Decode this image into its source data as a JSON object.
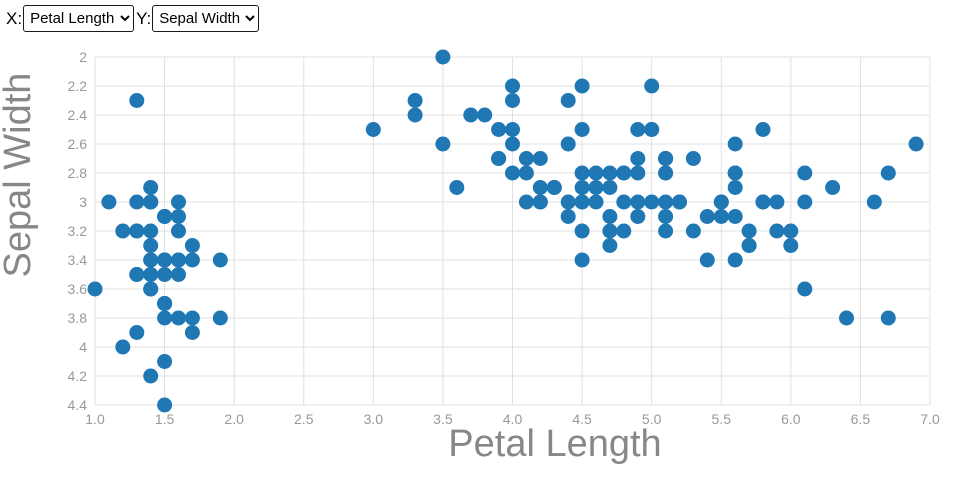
{
  "controls": {
    "x_label": "X:",
    "x_select_value": "Petal Length",
    "y_label": "Y:",
    "y_select_value": "Sepal Width"
  },
  "chart_data": {
    "type": "scatter",
    "title": "",
    "xlabel": "Petal Length",
    "ylabel": "Sepal Width",
    "xlim": [
      1.0,
      7.0
    ],
    "ylim": [
      2.0,
      4.4
    ],
    "y_axis_reversed": true,
    "grid": true,
    "legend": "none",
    "x_ticks": [
      "1.0",
      "1.5",
      "2.0",
      "2.5",
      "3.0",
      "3.5",
      "4.0",
      "4.5",
      "5.0",
      "5.5",
      "6.0",
      "6.5",
      "7.0"
    ],
    "y_ticks": [
      "2",
      "2.2",
      "2.4",
      "2.6",
      "2.8",
      "3",
      "3.2",
      "3.4",
      "3.6",
      "3.8",
      "4",
      "4.2",
      "4.4"
    ],
    "marker_color": "#1f77b4",
    "marker_radius": 7.5,
    "grid_color": "#e0e0e0",
    "tick_label_color": "#999999",
    "axis_title_color": "#878787",
    "points": [
      [
        1.4,
        3.5
      ],
      [
        1.4,
        3.0
      ],
      [
        1.3,
        3.2
      ],
      [
        1.5,
        3.1
      ],
      [
        1.4,
        3.6
      ],
      [
        1.7,
        3.9
      ],
      [
        1.4,
        3.4
      ],
      [
        1.5,
        3.4
      ],
      [
        1.4,
        2.9
      ],
      [
        1.5,
        3.1
      ],
      [
        1.5,
        3.7
      ],
      [
        1.6,
        3.4
      ],
      [
        1.4,
        3.0
      ],
      [
        1.1,
        3.0
      ],
      [
        1.2,
        4.0
      ],
      [
        1.5,
        4.4
      ],
      [
        1.3,
        3.9
      ],
      [
        1.4,
        3.5
      ],
      [
        1.7,
        3.8
      ],
      [
        1.5,
        3.8
      ],
      [
        1.7,
        3.4
      ],
      [
        1.5,
        3.7
      ],
      [
        1.0,
        3.6
      ],
      [
        1.7,
        3.3
      ],
      [
        1.9,
        3.4
      ],
      [
        1.6,
        3.0
      ],
      [
        1.6,
        3.4
      ],
      [
        1.5,
        3.5
      ],
      [
        1.4,
        3.4
      ],
      [
        1.6,
        3.2
      ],
      [
        1.6,
        3.1
      ],
      [
        1.5,
        3.4
      ],
      [
        1.5,
        4.1
      ],
      [
        1.4,
        4.2
      ],
      [
        1.5,
        3.1
      ],
      [
        1.2,
        3.2
      ],
      [
        1.3,
        3.5
      ],
      [
        1.4,
        3.6
      ],
      [
        1.3,
        3.0
      ],
      [
        1.5,
        3.4
      ],
      [
        1.3,
        3.5
      ],
      [
        1.3,
        2.3
      ],
      [
        1.3,
        3.2
      ],
      [
        1.6,
        3.5
      ],
      [
        1.9,
        3.8
      ],
      [
        1.4,
        3.0
      ],
      [
        1.6,
        3.8
      ],
      [
        1.4,
        3.2
      ],
      [
        1.5,
        3.7
      ],
      [
        1.4,
        3.3
      ],
      [
        4.7,
        3.2
      ],
      [
        4.5,
        3.2
      ],
      [
        4.9,
        3.1
      ],
      [
        4.0,
        2.3
      ],
      [
        4.6,
        2.8
      ],
      [
        4.5,
        2.8
      ],
      [
        4.7,
        3.3
      ],
      [
        3.3,
        2.4
      ],
      [
        4.6,
        2.9
      ],
      [
        3.9,
        2.7
      ],
      [
        3.5,
        2.0
      ],
      [
        4.2,
        3.0
      ],
      [
        4.0,
        2.2
      ],
      [
        4.7,
        2.9
      ],
      [
        3.6,
        2.9
      ],
      [
        4.4,
        3.1
      ],
      [
        4.5,
        3.0
      ],
      [
        4.1,
        2.7
      ],
      [
        4.5,
        2.2
      ],
      [
        3.9,
        2.5
      ],
      [
        4.8,
        3.2
      ],
      [
        4.0,
        2.8
      ],
      [
        4.9,
        2.5
      ],
      [
        4.7,
        2.8
      ],
      [
        4.3,
        2.9
      ],
      [
        4.4,
        3.0
      ],
      [
        4.8,
        2.8
      ],
      [
        5.0,
        3.0
      ],
      [
        4.5,
        2.9
      ],
      [
        3.5,
        2.6
      ],
      [
        3.8,
        2.4
      ],
      [
        3.7,
        2.4
      ],
      [
        3.9,
        2.7
      ],
      [
        5.1,
        2.7
      ],
      [
        4.5,
        3.0
      ],
      [
        4.5,
        3.4
      ],
      [
        4.7,
        3.1
      ],
      [
        4.4,
        2.3
      ],
      [
        4.1,
        3.0
      ],
      [
        4.0,
        2.5
      ],
      [
        4.4,
        2.6
      ],
      [
        4.6,
        3.0
      ],
      [
        4.0,
        2.6
      ],
      [
        3.3,
        2.3
      ],
      [
        4.2,
        2.7
      ],
      [
        4.2,
        3.0
      ],
      [
        4.2,
        2.9
      ],
      [
        4.3,
        2.9
      ],
      [
        3.0,
        2.5
      ],
      [
        4.1,
        2.8
      ],
      [
        6.0,
        3.3
      ],
      [
        5.1,
        2.7
      ],
      [
        5.9,
        3.0
      ],
      [
        5.6,
        2.9
      ],
      [
        5.8,
        3.0
      ],
      [
        6.6,
        3.0
      ],
      [
        4.5,
        2.5
      ],
      [
        6.3,
        2.9
      ],
      [
        5.8,
        2.5
      ],
      [
        6.1,
        3.6
      ],
      [
        5.1,
        3.2
      ],
      [
        5.3,
        2.7
      ],
      [
        5.5,
        3.0
      ],
      [
        5.0,
        2.5
      ],
      [
        5.1,
        2.8
      ],
      [
        5.3,
        3.2
      ],
      [
        5.5,
        3.0
      ],
      [
        6.7,
        3.8
      ],
      [
        6.9,
        2.6
      ],
      [
        5.0,
        2.2
      ],
      [
        5.7,
        3.2
      ],
      [
        4.9,
        2.8
      ],
      [
        6.7,
        2.8
      ],
      [
        4.9,
        2.7
      ],
      [
        5.7,
        3.3
      ],
      [
        6.0,
        3.2
      ],
      [
        4.8,
        2.8
      ],
      [
        4.9,
        3.0
      ],
      [
        5.6,
        2.8
      ],
      [
        5.8,
        3.0
      ],
      [
        6.1,
        2.8
      ],
      [
        6.4,
        3.8
      ],
      [
        5.6,
        2.8
      ],
      [
        5.1,
        2.8
      ],
      [
        5.6,
        2.6
      ],
      [
        6.1,
        3.0
      ],
      [
        5.6,
        3.4
      ],
      [
        5.5,
        3.1
      ],
      [
        4.8,
        3.0
      ],
      [
        5.4,
        3.1
      ],
      [
        5.6,
        3.1
      ],
      [
        5.1,
        3.1
      ],
      [
        5.1,
        2.7
      ],
      [
        5.9,
        3.2
      ],
      [
        5.7,
        3.3
      ],
      [
        5.2,
        3.0
      ],
      [
        5.0,
        2.5
      ],
      [
        5.2,
        3.0
      ],
      [
        5.4,
        3.4
      ],
      [
        5.1,
        3.0
      ]
    ]
  }
}
